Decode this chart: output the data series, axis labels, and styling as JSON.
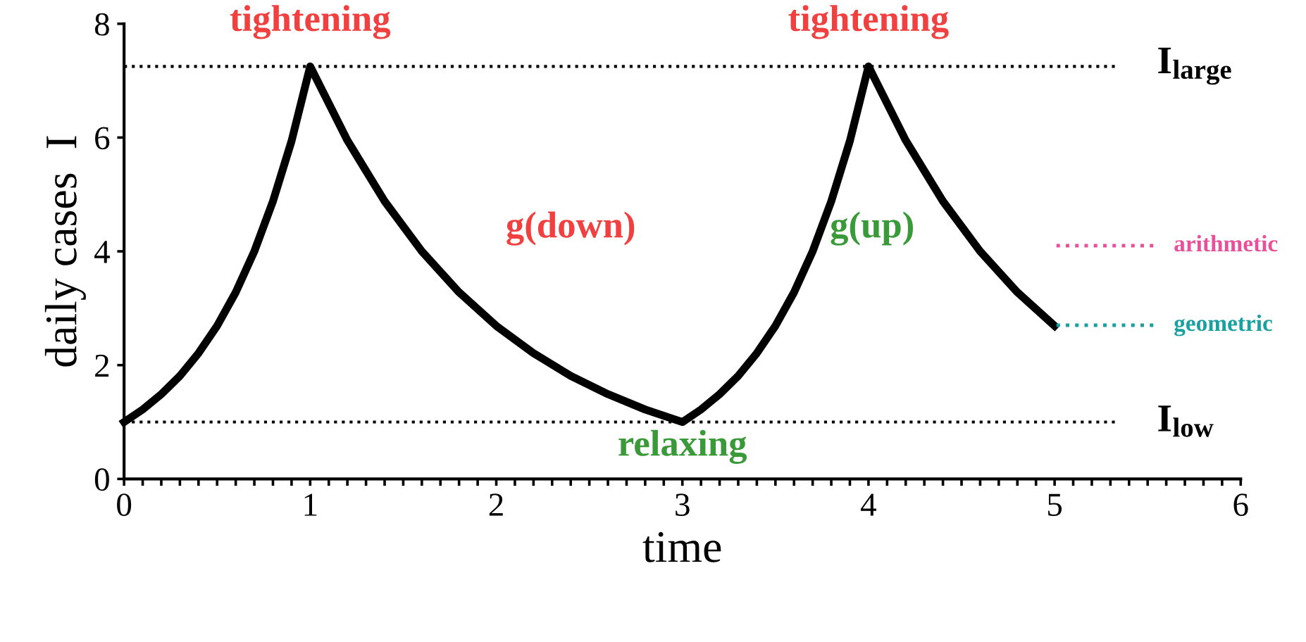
{
  "chart_data": {
    "type": "line",
    "xlabel": "time",
    "ylabel": "daily cases  I",
    "x": [
      0,
      0.1,
      0.2,
      0.3,
      0.4,
      0.5,
      0.6,
      0.7,
      0.8,
      0.9,
      1,
      1.2,
      1.4,
      1.6,
      1.8,
      2,
      2.2,
      2.4,
      2.6,
      2.8,
      3,
      3.1,
      3.2,
      3.3,
      3.4,
      3.5,
      3.6,
      3.7,
      3.8,
      3.9,
      4,
      4.2,
      4.4,
      4.6,
      4.8,
      5
    ],
    "series": [
      {
        "color": "#000000",
        "values": [
          1,
          1.22,
          1.49,
          1.81,
          2.21,
          2.69,
          3.28,
          4,
          4.88,
          5.94,
          7.25,
          5.95,
          4.88,
          4,
          3.28,
          2.69,
          2.21,
          1.81,
          1.49,
          1.22,
          1,
          1.22,
          1.49,
          1.81,
          2.21,
          2.69,
          3.28,
          4,
          4.88,
          5.94,
          7.25,
          5.95,
          4.88,
          4,
          3.28,
          2.69
        ]
      }
    ],
    "ref_lines": [
      {
        "axis": "y",
        "value": 7.25,
        "label": "I$_{large}$",
        "color": "#000000",
        "line_style": "dotted"
      },
      {
        "axis": "y",
        "value": 1,
        "label": "I$_{low}$",
        "color": "#000000",
        "line_style": "dotted"
      },
      {
        "axis": "y",
        "value": 4.1,
        "label": "arithmetic",
        "color": "#e8509a",
        "line_style": "dotted"
      },
      {
        "axis": "y",
        "value": 2.7,
        "label": "geometric",
        "color": "#1aa0a0",
        "line_style": "dotted"
      }
    ],
    "annotations": [
      {
        "text": "tightening",
        "x": 1,
        "y": 7.25
      },
      "g(down)",
      "g(up)",
      {
        "text": "relaxing",
        "x": 3,
        "y": 1
      },
      {
        "text": "tightening",
        "x": 4,
        "y": 7.25
      }
    ],
    "xlim": [
      0,
      6
    ],
    "ylim": [
      0,
      8
    ],
    "xticks": [
      0,
      {
        "value": 0.1,
        "label": null
      },
      {
        "value": 0.2,
        "label": null
      },
      {
        "value": 0.3,
        "label": null
      },
      {
        "value": 0.4,
        "label": null
      },
      {
        "value": 0.5,
        "label": null
      },
      {
        "value": 0.6,
        "label": null
      },
      {
        "value": 0.7,
        "label": null
      },
      {
        "value": 0.8,
        "label": null
      },
      {
        "value": 0.9,
        "label": null
      },
      1,
      {
        "value": 1.1,
        "label": null
      },
      {
        "value": 1.2,
        "label": null
      },
      {
        "value": 1.3,
        "label": null
      },
      {
        "value": 1.4,
        "label": null
      },
      {
        "value": 1.5,
        "label": null
      },
      {
        "value": 1.6,
        "label": null
      },
      {
        "value": 1.7,
        "label": null
      },
      {
        "value": 1.8,
        "label": null
      },
      {
        "value": 1.9,
        "label": null
      },
      2,
      {
        "value": 2.1,
        "label": null
      },
      {
        "value": 2.2,
        "label": null
      },
      {
        "value": 2.3,
        "label": null
      },
      {
        "value": 2.4,
        "label": null
      },
      {
        "value": 2.5,
        "label": null
      },
      {
        "value": 2.6,
        "label": null
      },
      {
        "value": 2.7,
        "label": null
      },
      {
        "value": 2.8,
        "label": null
      },
      {
        "value": 2.9,
        "label": null
      },
      3,
      {
        "value": 3.1,
        "label": null
      },
      {
        "value": 3.2,
        "label": null
      },
      {
        "value": 3.3,
        "label": null
      },
      {
        "value": 3.4,
        "label": null
      },
      {
        "value": 3.5,
        "label": null
      },
      {
        "value": 3.6,
        "label": null
      },
      {
        "value": 3.7,
        "label": null
      },
      {
        "value": 3.8,
        "label": null
      },
      {
        "value": 3.9,
        "label": null
      },
      4,
      {
        "value": 4.1,
        "label": null
      },
      {
        "value": 4.2,
        "label": null
      },
      {
        "value": 4.3,
        "label": null
      },
      {
        "value": 4.4,
        "label": null
      },
      {
        "value": 4.5,
        "label": null
      },
      {
        "value": 4.6,
        "label": null
      },
      {
        "value": 4.7,
        "label": null
      },
      {
        "value": 4.8,
        "label": null
      },
      {
        "value": 4.9,
        "label": null
      },
      5,
      {
        "value": 5.1,
        "label": null
      },
      {
        "value": 5.2,
        "label": null
      },
      {
        "value": 5.3,
        "label": null
      },
      {
        "value": 5.4,
        "label": null
      },
      {
        "value": 5.5,
        "label": null
      },
      {
        "value": 5.6,
        "label": null
      },
      {
        "value": 5.7,
        "label": null
      },
      {
        "value": 5.8,
        "label": null
      },
      {
        "value": 5.9,
        "label": null
      },
      6
    ],
    "yticks": [
      0,
      2,
      4,
      6,
      8
    ],
    "grid": false,
    "legend": false
  }
}
